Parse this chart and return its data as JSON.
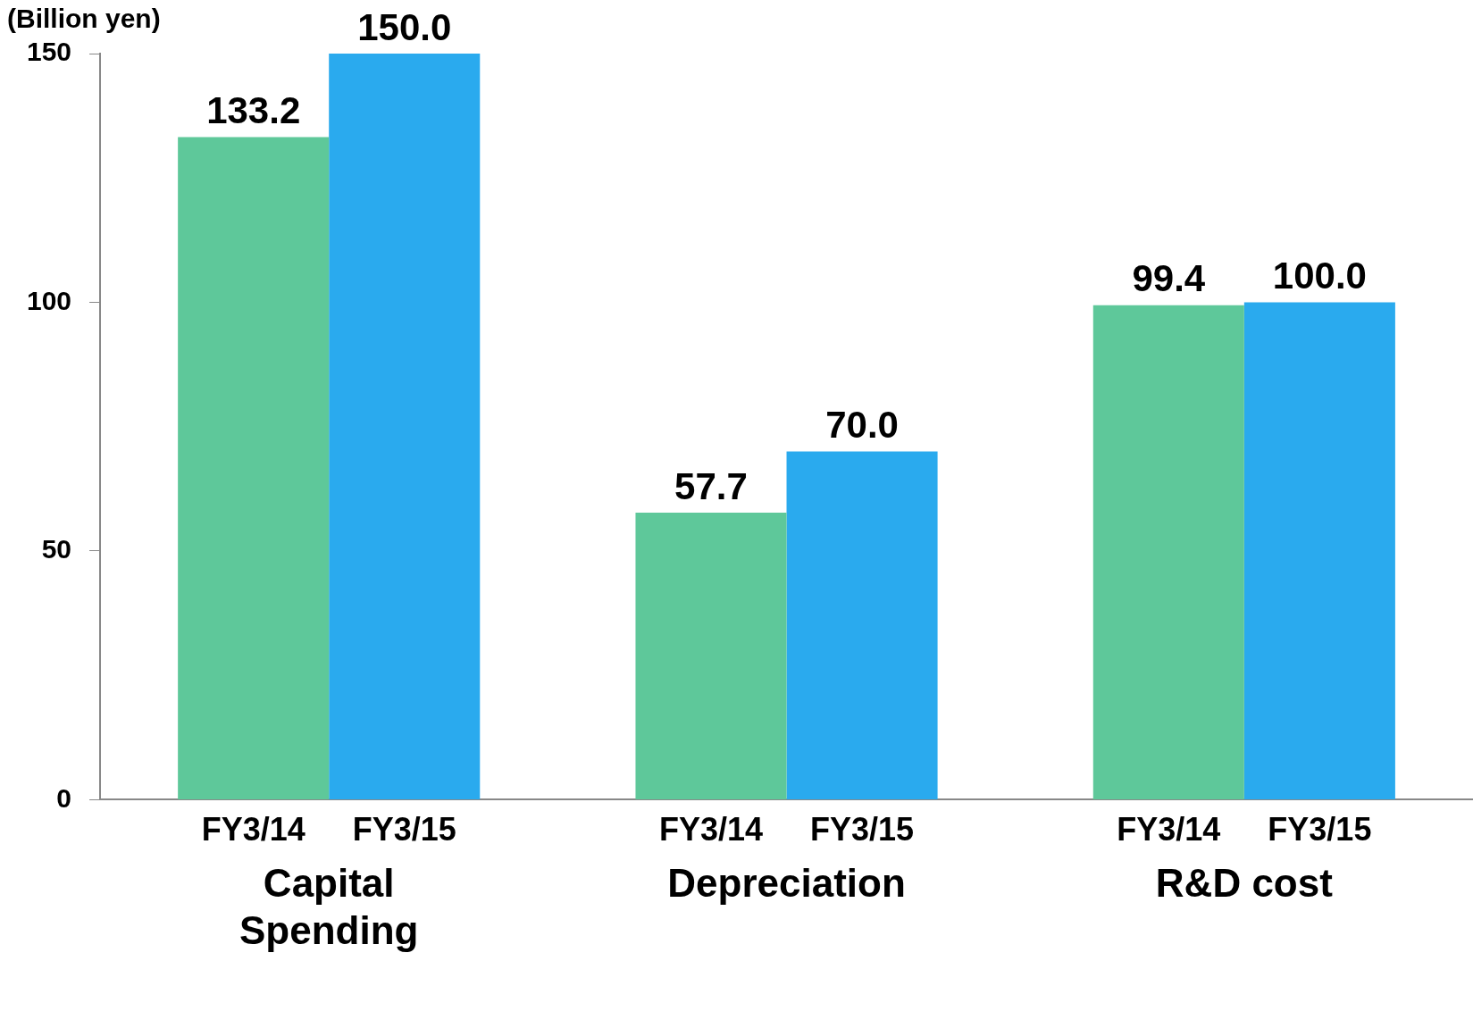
{
  "chart_data": {
    "type": "bar",
    "ylabel": "(Billion yen)",
    "categories": [
      "Capital Spending",
      "Depreciation",
      "R&D cost"
    ],
    "series": [
      {
        "name": "FY3/14",
        "color": "#5ec89a",
        "values": [
          133.2,
          57.7,
          99.4
        ],
        "value_labels": [
          "133.2",
          "57.7",
          "99.4"
        ]
      },
      {
        "name": "FY3/15",
        "color": "#2aaaee",
        "values": [
          150,
          70,
          100
        ],
        "value_labels": [
          "150.0",
          "70.0",
          "100.0"
        ]
      }
    ],
    "ylim": [
      0,
      150
    ],
    "yticks": [
      0,
      50,
      100,
      150
    ],
    "grid": false,
    "legend": false
  }
}
